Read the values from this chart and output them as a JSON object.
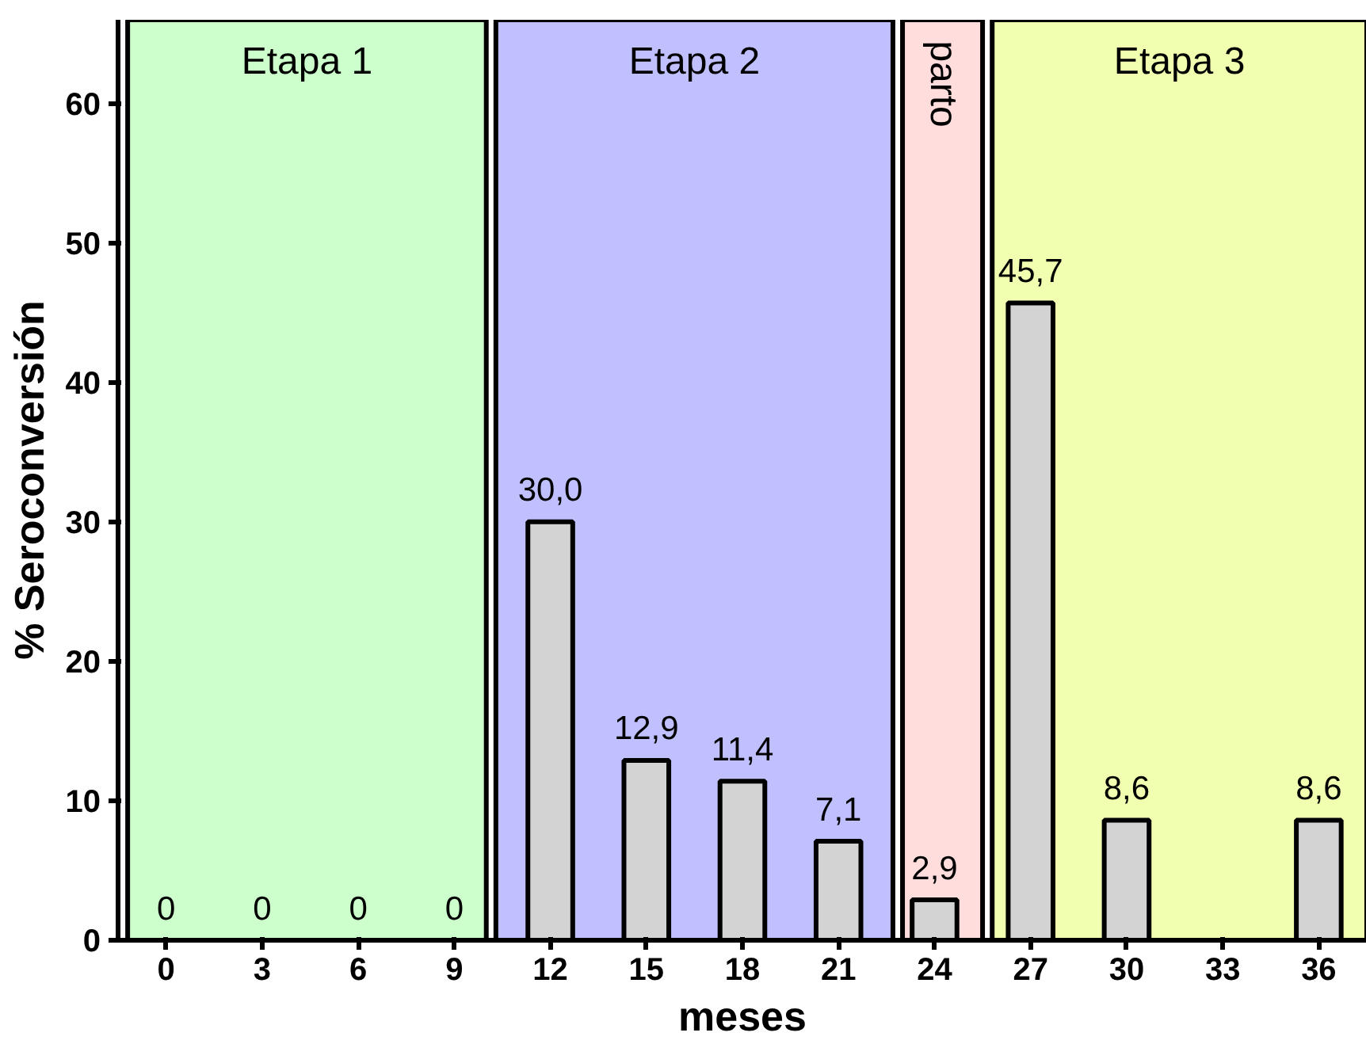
{
  "chart_data": {
    "type": "bar",
    "xlabel": "meses",
    "ylabel": "% Seroconversión",
    "x": [
      0,
      3,
      6,
      9,
      12,
      15,
      18,
      21,
      24,
      27,
      30,
      36
    ],
    "values": [
      0,
      0,
      0,
      0,
      30.0,
      12.9,
      11.4,
      7.1,
      2.9,
      45.7,
      8.6,
      8.6
    ],
    "value_labels": [
      "0",
      "0",
      "0",
      "0",
      "30,0",
      "12,9",
      "11,4",
      "7,1",
      "2,9",
      "45,7",
      "8,6",
      "8,6"
    ],
    "color": "#d3d3d3",
    "xlim": [
      -1.5,
      37.5
    ],
    "ylim": [
      0,
      66
    ],
    "xticks": [
      0,
      3,
      6,
      9,
      12,
      15,
      18,
      21,
      24,
      27,
      30,
      33,
      36
    ],
    "yticks": [
      0,
      10,
      20,
      30,
      40,
      50,
      60
    ],
    "bands": [
      {
        "axis": "x",
        "from": -1.2,
        "to": 10,
        "label": "Etapa 1",
        "color": "#ccffcc"
      },
      {
        "axis": "x",
        "from": 10.3,
        "to": 22.7,
        "label": "Etapa 2",
        "color": "#c0c0ff"
      },
      {
        "axis": "x",
        "from": 23,
        "to": 25.5,
        "label": "parto",
        "color": "#ffdddd"
      },
      {
        "axis": "x",
        "from": 25.8,
        "to": 37.5,
        "label": "Etapa 3",
        "color": "#f0ffb0"
      }
    ],
    "grid": false
  }
}
